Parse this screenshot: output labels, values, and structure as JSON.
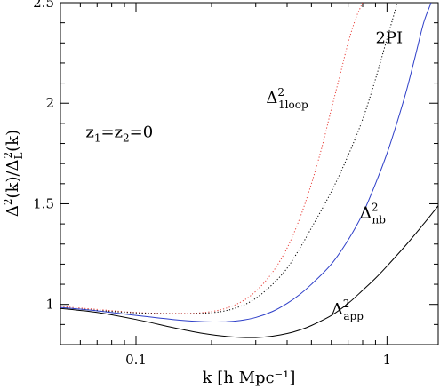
{
  "chart_data": {
    "type": "line",
    "xlabel": "k [h Mpc⁻¹]",
    "ylabel": {
      "pre": "Δ",
      "sup1": "2",
      "mid": "(k)/Δ",
      "sub": "L",
      "sup2": "2",
      "post": "(k)"
    },
    "x_scale": "log",
    "xlim": [
      0.05,
      1.6
    ],
    "ylim": [
      0.8,
      2.5
    ],
    "x_ticks": [
      0.1,
      1
    ],
    "x_tick_labels": [
      "0.1",
      "1"
    ],
    "y_ticks": [
      1,
      1.5,
      2,
      2.5
    ],
    "y_tick_labels": [
      "1",
      "1.5",
      "2",
      "2.5"
    ],
    "grid": false,
    "legend": "none",
    "series": [
      {
        "id": "1loop",
        "color": "#e8403a",
        "dash": "dotted",
        "x": [
          0.05,
          0.07,
          0.1,
          0.14,
          0.18,
          0.22,
          0.26,
          0.3,
          0.35,
          0.4,
          0.45,
          0.5,
          0.55,
          0.6,
          0.65,
          0.7,
          0.75,
          0.8
        ],
        "y": [
          0.99,
          0.975,
          0.96,
          0.955,
          0.958,
          0.975,
          1.01,
          1.065,
          1.16,
          1.28,
          1.43,
          1.6,
          1.78,
          1.97,
          2.14,
          2.3,
          2.42,
          2.5
        ]
      },
      {
        "id": "2pi",
        "color": "#000000",
        "dash": "dotted",
        "x": [
          0.05,
          0.07,
          0.1,
          0.14,
          0.18,
          0.22,
          0.26,
          0.3,
          0.35,
          0.4,
          0.45,
          0.5,
          0.6,
          0.7,
          0.8,
          0.9,
          1.0,
          1.1
        ],
        "y": [
          0.985,
          0.97,
          0.958,
          0.953,
          0.955,
          0.965,
          0.99,
          1.03,
          1.1,
          1.18,
          1.28,
          1.38,
          1.56,
          1.74,
          1.92,
          2.12,
          2.32,
          2.5
        ]
      },
      {
        "id": "nb",
        "color": "#2d3ec8",
        "dash": "solid",
        "x": [
          0.05,
          0.07,
          0.1,
          0.14,
          0.18,
          0.22,
          0.26,
          0.3,
          0.35,
          0.4,
          0.45,
          0.5,
          0.6,
          0.7,
          0.8,
          0.9,
          1.0,
          1.1,
          1.2,
          1.3,
          1.4,
          1.5
        ],
        "y": [
          0.985,
          0.968,
          0.945,
          0.925,
          0.915,
          0.913,
          0.92,
          0.935,
          0.965,
          1.005,
          1.05,
          1.1,
          1.2,
          1.32,
          1.45,
          1.6,
          1.75,
          1.91,
          2.07,
          2.24,
          2.4,
          2.5
        ]
      },
      {
        "id": "app",
        "color": "#000000",
        "dash": "solid",
        "x": [
          0.05,
          0.07,
          0.1,
          0.14,
          0.18,
          0.22,
          0.26,
          0.3,
          0.35,
          0.4,
          0.45,
          0.5,
          0.6,
          0.7,
          0.8,
          0.9,
          1.0,
          1.2,
          1.4,
          1.6
        ],
        "y": [
          0.98,
          0.96,
          0.925,
          0.885,
          0.858,
          0.843,
          0.836,
          0.835,
          0.842,
          0.855,
          0.873,
          0.895,
          0.945,
          1.005,
          1.07,
          1.13,
          1.19,
          1.3,
          1.4,
          1.49
        ]
      }
    ],
    "annotations": [
      {
        "id": "z-label",
        "pre": "z",
        "sub1": "1",
        "mid": "=z",
        "sub2": "2",
        "post": "=0",
        "x": 0.063,
        "y": 1.83
      },
      {
        "id": "label-2pi",
        "text": "2PI",
        "x": 0.9,
        "y": 2.3
      },
      {
        "id": "label-1loop",
        "base": "Δ",
        "sup": "2",
        "sub": "1loop",
        "x": 0.33,
        "y": 2.0
      },
      {
        "id": "label-nb",
        "base": "Δ",
        "sup": "2",
        "sub": "nb",
        "x": 0.78,
        "y": 1.43
      },
      {
        "id": "label-app",
        "base": "Δ",
        "sup": "2",
        "sub": "app",
        "x": 0.6,
        "y": 0.95
      }
    ]
  }
}
